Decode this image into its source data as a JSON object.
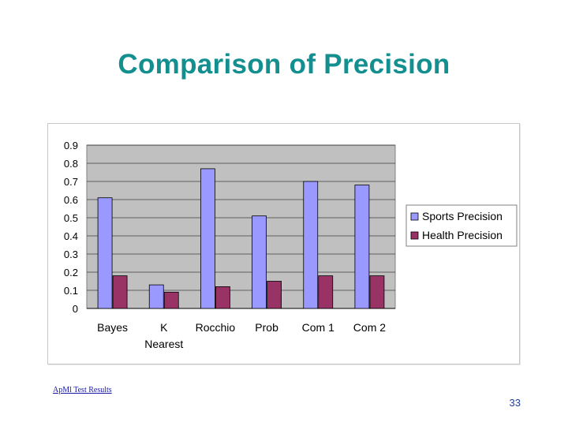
{
  "slide": {
    "title": "Comparison of Precision",
    "footer_link": "ApMl Test Results",
    "page_number": "33"
  },
  "colors": {
    "title": "#138f8f",
    "plot_bg": "#c0c0c0",
    "sports": "#9999ff",
    "health": "#993366"
  },
  "chart_data": {
    "type": "bar",
    "title": "",
    "xlabel": "",
    "ylabel": "",
    "categories": [
      "Bayes",
      "K Nearest",
      "Rocchio",
      "Prob",
      "Com 1",
      "Com 2"
    ],
    "category_lines": [
      [
        "Bayes"
      ],
      [
        "K",
        "Nearest"
      ],
      [
        "Rocchio"
      ],
      [
        "Prob"
      ],
      [
        "Com 1"
      ],
      [
        "Com 2"
      ]
    ],
    "series": [
      {
        "name": "Sports Precision",
        "color": "#9999ff",
        "values": [
          0.61,
          0.13,
          0.77,
          0.51,
          0.7,
          0.68
        ]
      },
      {
        "name": "Health Precision",
        "color": "#993366",
        "values": [
          0.18,
          0.09,
          0.12,
          0.15,
          0.18,
          0.18
        ]
      }
    ],
    "ylim": [
      0,
      0.9
    ],
    "yticks": [
      "0",
      "0.1",
      "0.2",
      "0.3",
      "0.4",
      "0.5",
      "0.6",
      "0.7",
      "0.8",
      "0.9"
    ],
    "grid": true,
    "legend": "right"
  }
}
